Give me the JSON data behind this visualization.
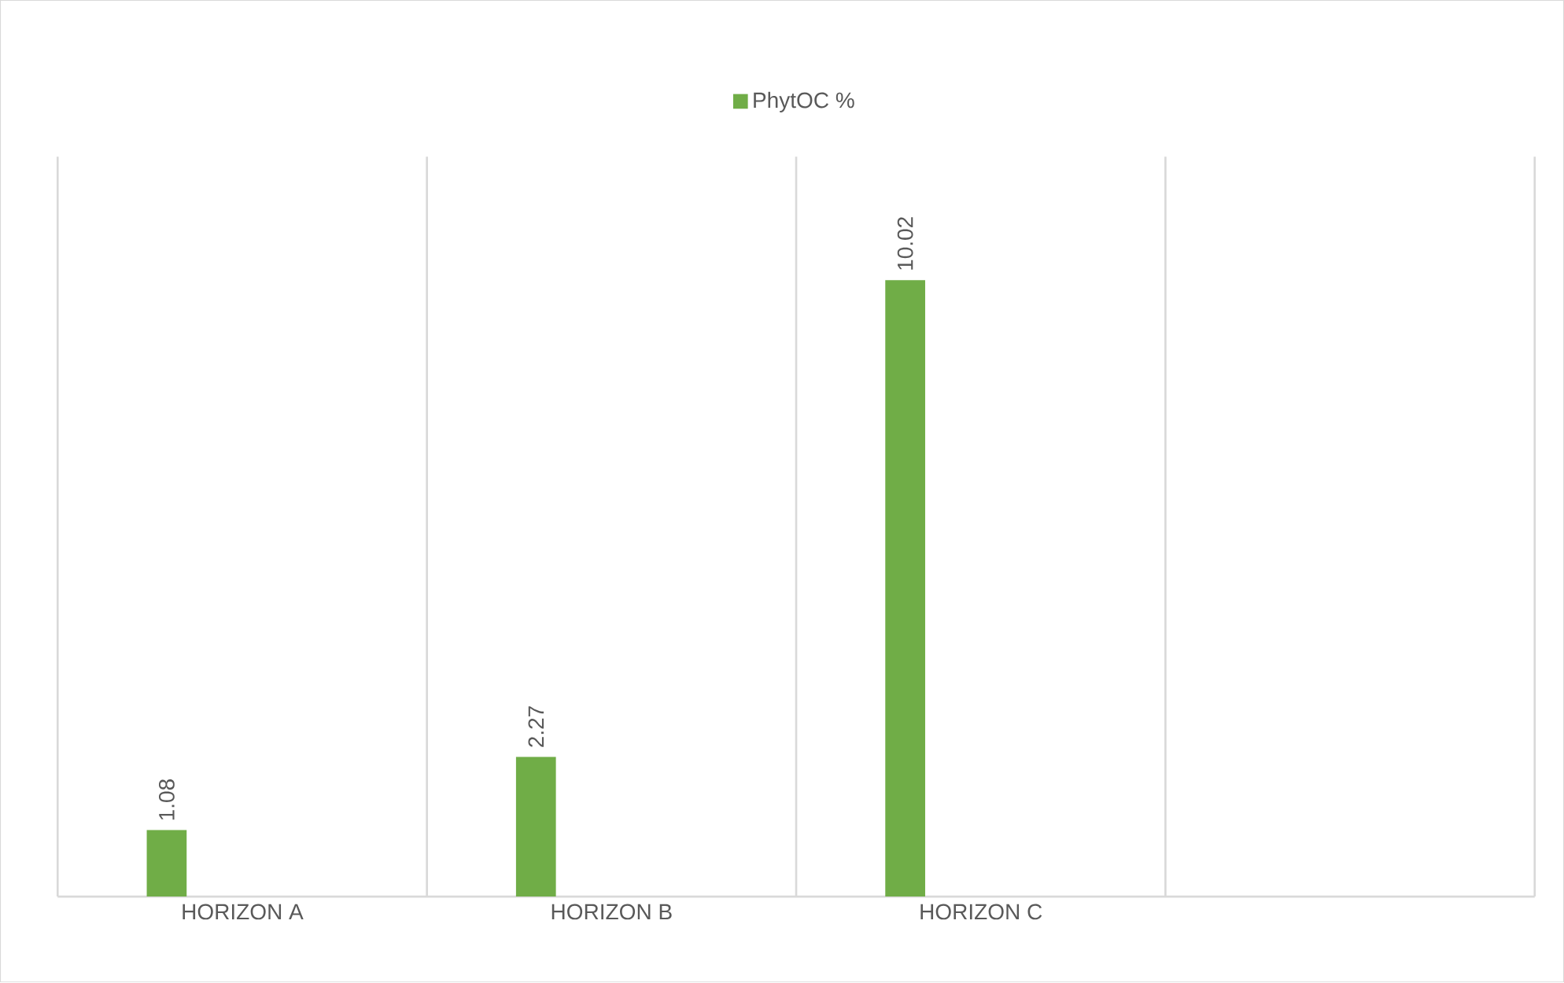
{
  "chart_data": {
    "type": "bar",
    "categories": [
      "HORIZON A",
      "HORIZON B",
      "HORIZON C",
      null
    ],
    "series": [
      {
        "name": "PhytOC %",
        "color": "#70ad47",
        "values": [
          1.08,
          2.27,
          10.02,
          null
        ]
      }
    ],
    "data_labels": true,
    "grid": "x",
    "legend": "top"
  }
}
